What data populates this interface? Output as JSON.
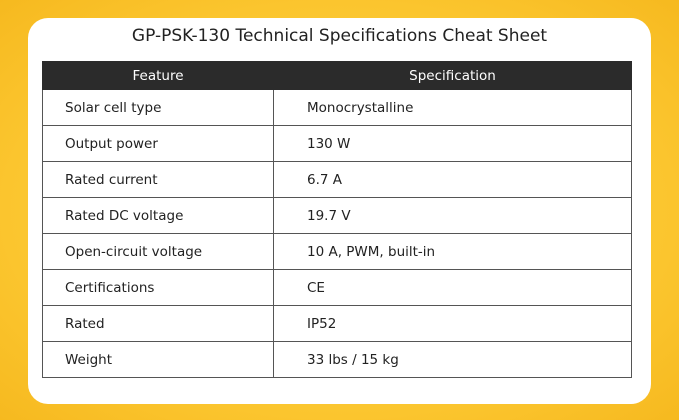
{
  "header": {
    "title": "GP-PSK-130 Technical Specifications Cheat Sheet"
  },
  "table": {
    "columns": [
      "Feature",
      "Specification"
    ],
    "rows": [
      [
        "Solar cell type",
        "Monocrystalline"
      ],
      [
        "Output power",
        "130 W"
      ],
      [
        "Rated current",
        "6.7 A"
      ],
      [
        "Rated DC voltage",
        "19.7 V"
      ],
      [
        "Open-circuit voltage",
        "10 A, PWM, built-in"
      ],
      [
        "Certifications",
        "CE"
      ],
      [
        "Rated",
        "IP52"
      ],
      [
        "Weight",
        "33 lbs / 15 kg"
      ]
    ]
  }
}
